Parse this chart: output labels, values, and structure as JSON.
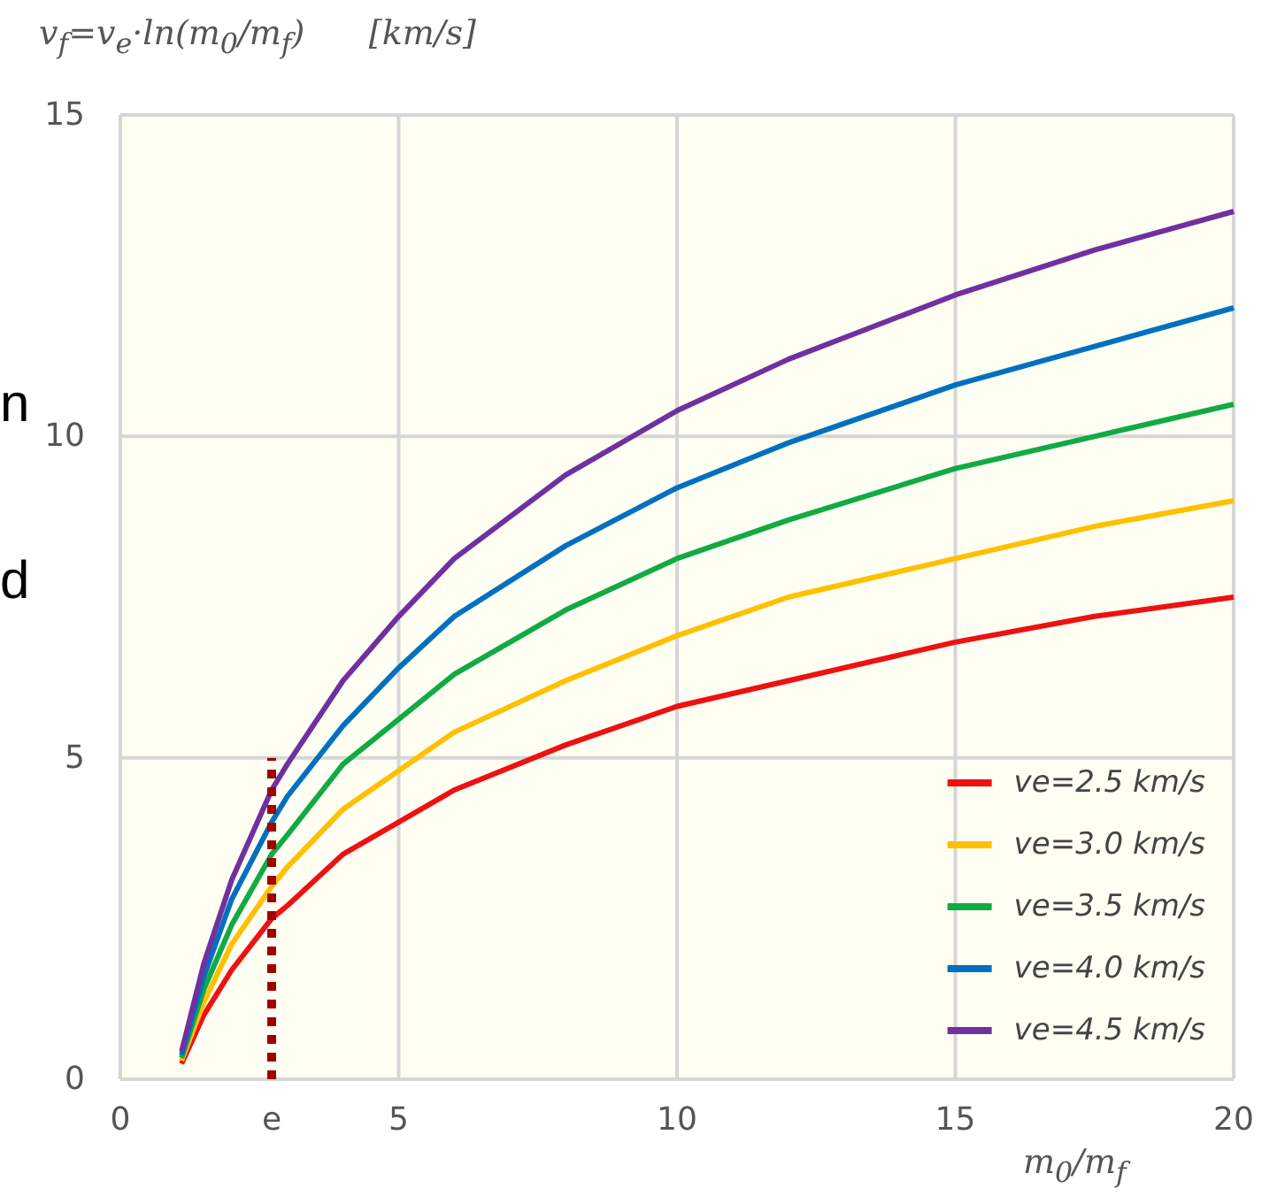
{
  "chart_data": {
    "type": "line",
    "ylabel": "v$_{f}$=v$_{e}$·ln(m$_{0}$/m$_{f}$)      [km/s]",
    "xlabel": "m$_{0}$/m$_{f}$",
    "x": [
      1.1,
      1.5,
      2,
      2.718,
      3,
      4,
      5,
      6,
      8,
      10,
      12,
      15,
      17.5,
      20
    ],
    "xlim": [
      0,
      20
    ],
    "xticks": [
      0,
      {
        "value": 2.718,
        "label": "e"
      },
      5,
      10,
      15,
      20
    ],
    "ylim": [
      0,
      15
    ],
    "yticks": [
      0,
      5,
      10,
      15
    ],
    "grid": true,
    "legend": "bottom right",
    "marker": "none",
    "line_style": "solid",
    "annotations": [
      "n",
      "d"
    ],
    "series": [
      {
        "name": "ve=2.5 km/s",
        "color": "#ee1111",
        "values": [
          0.24,
          1.0,
          1.7,
          2.5,
          2.7,
          3.5,
          4.0,
          4.5,
          5.2,
          5.8,
          6.2,
          6.8,
          7.2,
          7.5
        ]
      },
      {
        "name": "ve=3.0 km/s",
        "color": "#ffc000",
        "values": [
          0.29,
          1.2,
          2.1,
          3.0,
          3.3,
          4.2,
          4.8,
          5.4,
          6.2,
          6.9,
          7.5,
          8.1,
          8.6,
          9.0
        ]
      },
      {
        "name": "ve=3.5 km/s",
        "color": "#11aa44",
        "values": [
          0.33,
          1.4,
          2.4,
          3.5,
          3.8,
          4.9,
          5.6,
          6.3,
          7.3,
          8.1,
          8.7,
          9.5,
          10.0,
          10.5
        ]
      },
      {
        "name": "ve=4.0 km/s",
        "color": "#0070c0",
        "values": [
          0.38,
          1.6,
          2.8,
          4.0,
          4.4,
          5.5,
          6.4,
          7.2,
          8.3,
          9.2,
          9.9,
          10.8,
          11.4,
          12.0
        ]
      },
      {
        "name": "ve=4.5 km/s",
        "color": "#7030a0",
        "values": [
          0.43,
          1.8,
          3.1,
          4.5,
          4.9,
          6.2,
          7.2,
          8.1,
          9.4,
          10.4,
          11.2,
          12.2,
          12.9,
          13.5
        ]
      },
      {
        "x": [
          2.718,
          2.718
        ],
        "values": [
          0,
          5
        ],
        "color": "#a00000",
        "line_style": "dotted"
      }
    ]
  }
}
